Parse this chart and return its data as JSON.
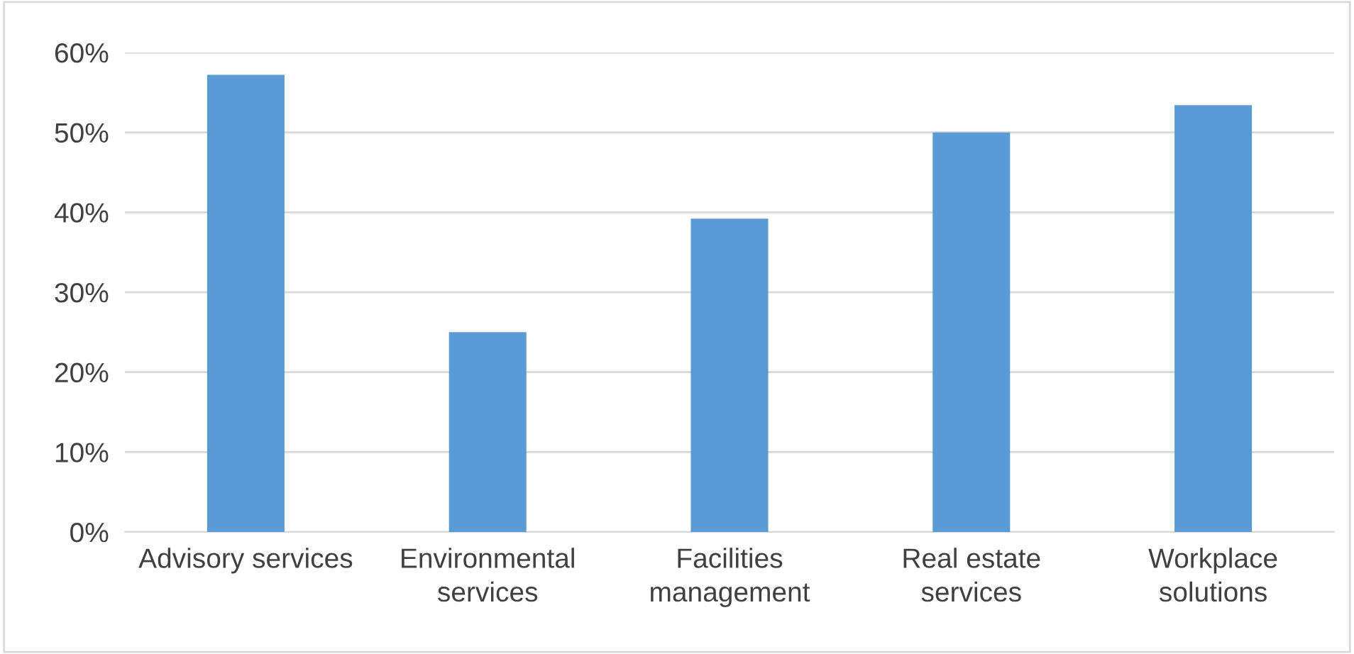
{
  "chart_data": {
    "type": "bar",
    "categories": [
      "Advisory services",
      "Environmental\nservices",
      "Facilities\nmanagement",
      "Real estate\nservices",
      "Workplace\nsolutions"
    ],
    "values": [
      57.2,
      25.0,
      39.2,
      50.0,
      53.4
    ],
    "color": "#5b9bd5",
    "ylim": [
      0,
      60
    ],
    "yticks": [
      {
        "value": 0,
        "label": "0%"
      },
      {
        "value": 10,
        "label": "10%"
      },
      {
        "value": 20,
        "label": "20%"
      },
      {
        "value": 30,
        "label": "30%"
      },
      {
        "value": 40,
        "label": "40%"
      },
      {
        "value": 50,
        "label": "50%"
      },
      {
        "value": 60,
        "label": "60%"
      }
    ],
    "grid": "y",
    "legend": false
  }
}
